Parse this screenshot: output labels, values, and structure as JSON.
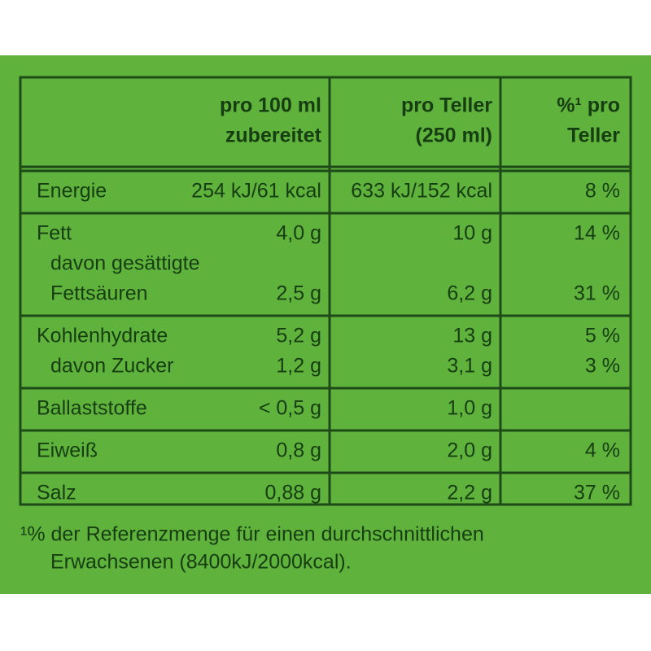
{
  "table": {
    "header": [
      {
        "lines": [
          "pro 100 ml",
          "zubereitet"
        ]
      },
      {
        "lines": [
          "pro Teller",
          "(250 ml)"
        ]
      },
      {
        "lines": [
          "%¹ pro",
          "Teller"
        ]
      }
    ],
    "rows": [
      {
        "lines": [
          {
            "label": "Energie",
            "per_100ml": "254 kJ/61 kcal",
            "per_plate": "633 kJ/152 kcal",
            "percent": "8 %"
          }
        ]
      },
      {
        "lines": [
          {
            "label": "Fett",
            "per_100ml": "4,0 g",
            "per_plate": "10 g",
            "percent": "14 %"
          },
          {
            "label": "davon gesättigte",
            "indent": true
          },
          {
            "label": "Fettsäuren",
            "indent": true,
            "per_100ml": "2,5 g",
            "per_plate": "6,2 g",
            "percent": "31 %"
          }
        ]
      },
      {
        "lines": [
          {
            "label": "Kohlenhydrate",
            "per_100ml": "5,2 g",
            "per_plate": "13 g",
            "percent": "5 %"
          },
          {
            "label": "davon Zucker",
            "indent": true,
            "per_100ml": "1,2 g",
            "per_plate": "3,1 g",
            "percent": "3 %"
          }
        ]
      },
      {
        "lines": [
          {
            "label": "Ballaststoffe",
            "per_100ml": "< 0,5 g",
            "per_plate": "1,0 g"
          }
        ]
      },
      {
        "lines": [
          {
            "label": "Eiweiß",
            "per_100ml": "0,8 g",
            "per_plate": "2,0 g",
            "percent": "4 %"
          }
        ]
      },
      {
        "lines": [
          {
            "label": "Salz",
            "per_100ml": "0,88 g",
            "per_plate": "2,2 g",
            "percent": "37 %"
          }
        ]
      }
    ]
  },
  "footnote": {
    "lines": [
      "¹% der Referenzmenge für einen durchschnittlichen",
      "Erwachsenen (8400kJ/2000kcal)."
    ]
  }
}
